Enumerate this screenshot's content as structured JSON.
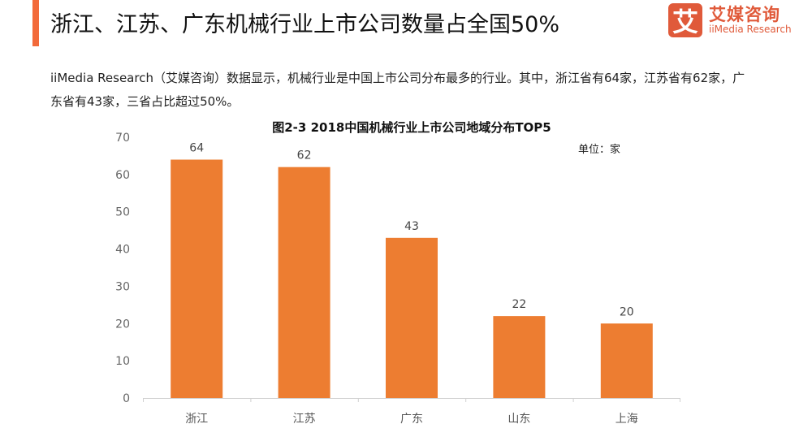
{
  "header": {
    "title": "浙江、江苏、广东机械行业上市公司数量占全国50%",
    "logo_mark": "艾",
    "logo_cn": "艾媒咨询",
    "logo_en": "iiMedia Research"
  },
  "description": "iiMedia Research（艾媒咨询）数据显示，机械行业是中国上市公司分布最多的行业。其中，浙江省有64家，江苏省有62家，广东省有43家，三省占比超过50%。",
  "chart_data": {
    "type": "bar",
    "title": "图2-3 2018中国机械行业上市公司地域分布TOP5",
    "unit_label": "单位：家",
    "categories": [
      "浙江",
      "江苏",
      "广东",
      "山东",
      "上海"
    ],
    "values": [
      64,
      62,
      43,
      22,
      20
    ],
    "ylim": [
      0,
      70
    ],
    "yticks": [
      0,
      10,
      20,
      30,
      40,
      50,
      60,
      70
    ],
    "bar_color": "#ed7d31",
    "grid": false
  }
}
